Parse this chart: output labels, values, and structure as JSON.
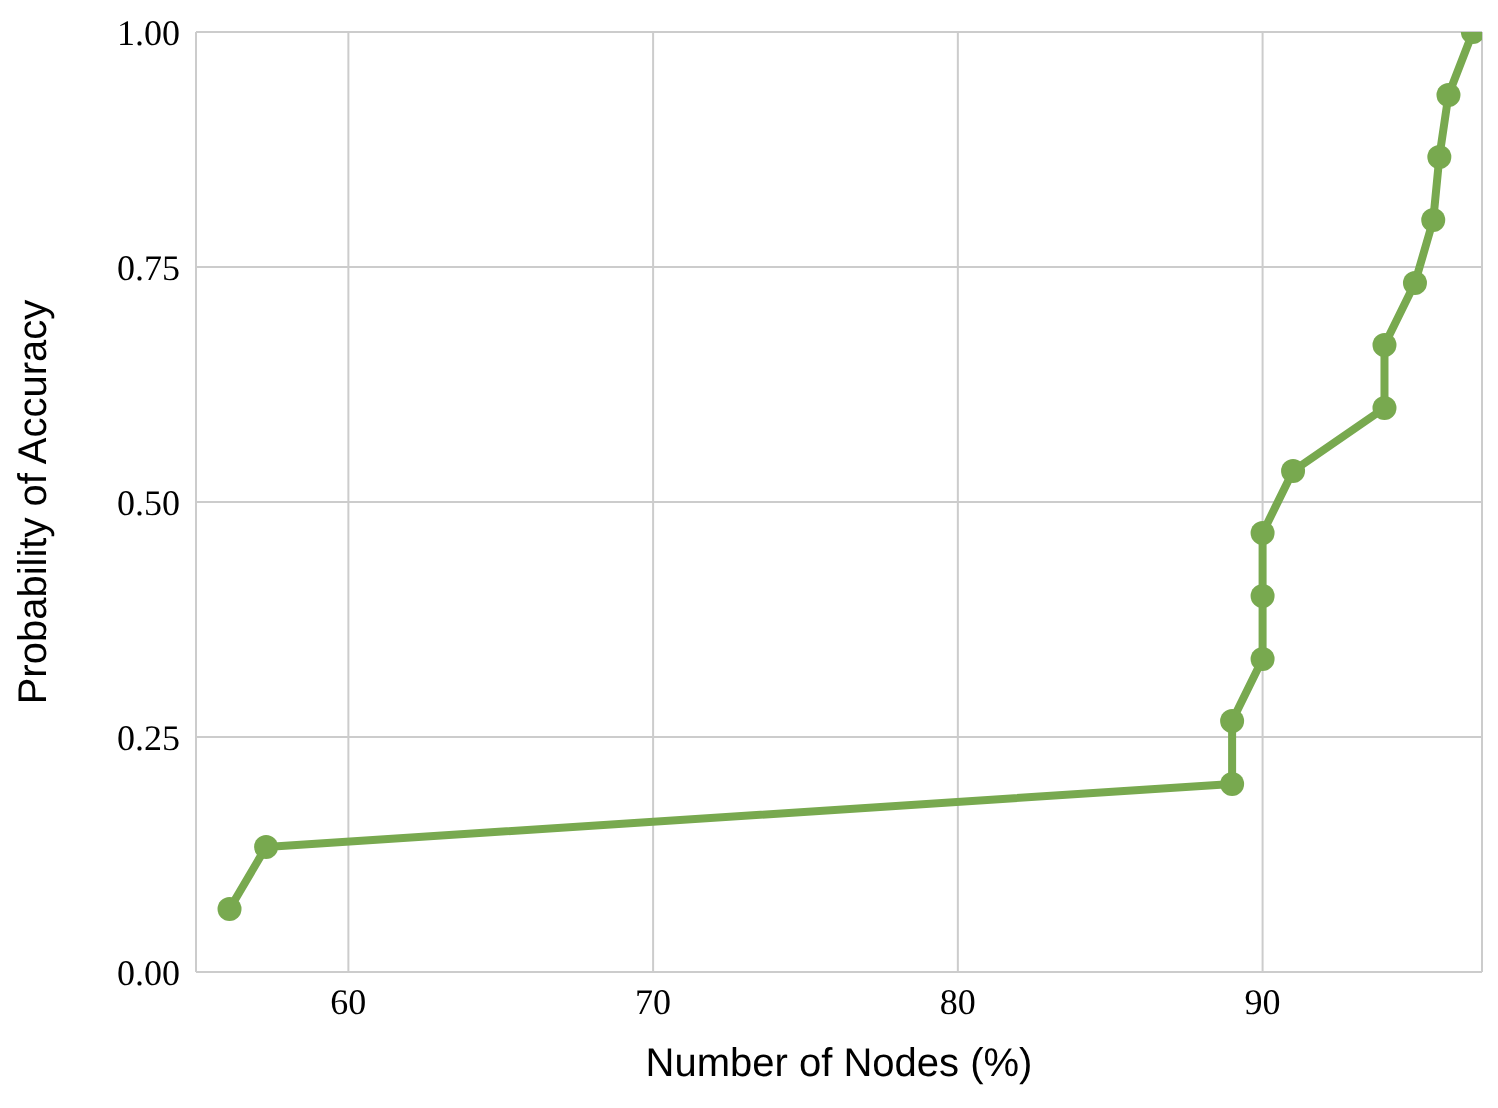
{
  "chart_data": {
    "type": "line",
    "xlabel": "Number of Nodes (%)",
    "ylabel": "Probability of Accuracy",
    "x": [
      56.1,
      57.3,
      89.0,
      89.0,
      90.0,
      90.0,
      90.0,
      91.0,
      94.0,
      94.0,
      95.0,
      95.6,
      95.8,
      96.1,
      96.9
    ],
    "series": [
      {
        "color": "#78a94f",
        "values": [
          0.067,
          0.133,
          0.2,
          0.267,
          0.333,
          0.4,
          0.467,
          0.533,
          0.6,
          0.667,
          0.733,
          0.8,
          0.867,
          0.933,
          1.0
        ]
      }
    ],
    "xlim": [
      55,
      97.2
    ],
    "xticks": [
      60,
      70,
      80,
      90
    ],
    "ylim": [
      0,
      1
    ],
    "yticks": [
      {
        "value": 0,
        "label": "0.00"
      },
      {
        "value": 0.25,
        "label": "0.25"
      },
      {
        "value": 0.5,
        "label": "0.50"
      },
      {
        "value": 0.75,
        "label": "0.75"
      },
      {
        "value": 1,
        "label": "1.00"
      }
    ],
    "grid": true,
    "marker": "circle",
    "line_style": "solid"
  }
}
